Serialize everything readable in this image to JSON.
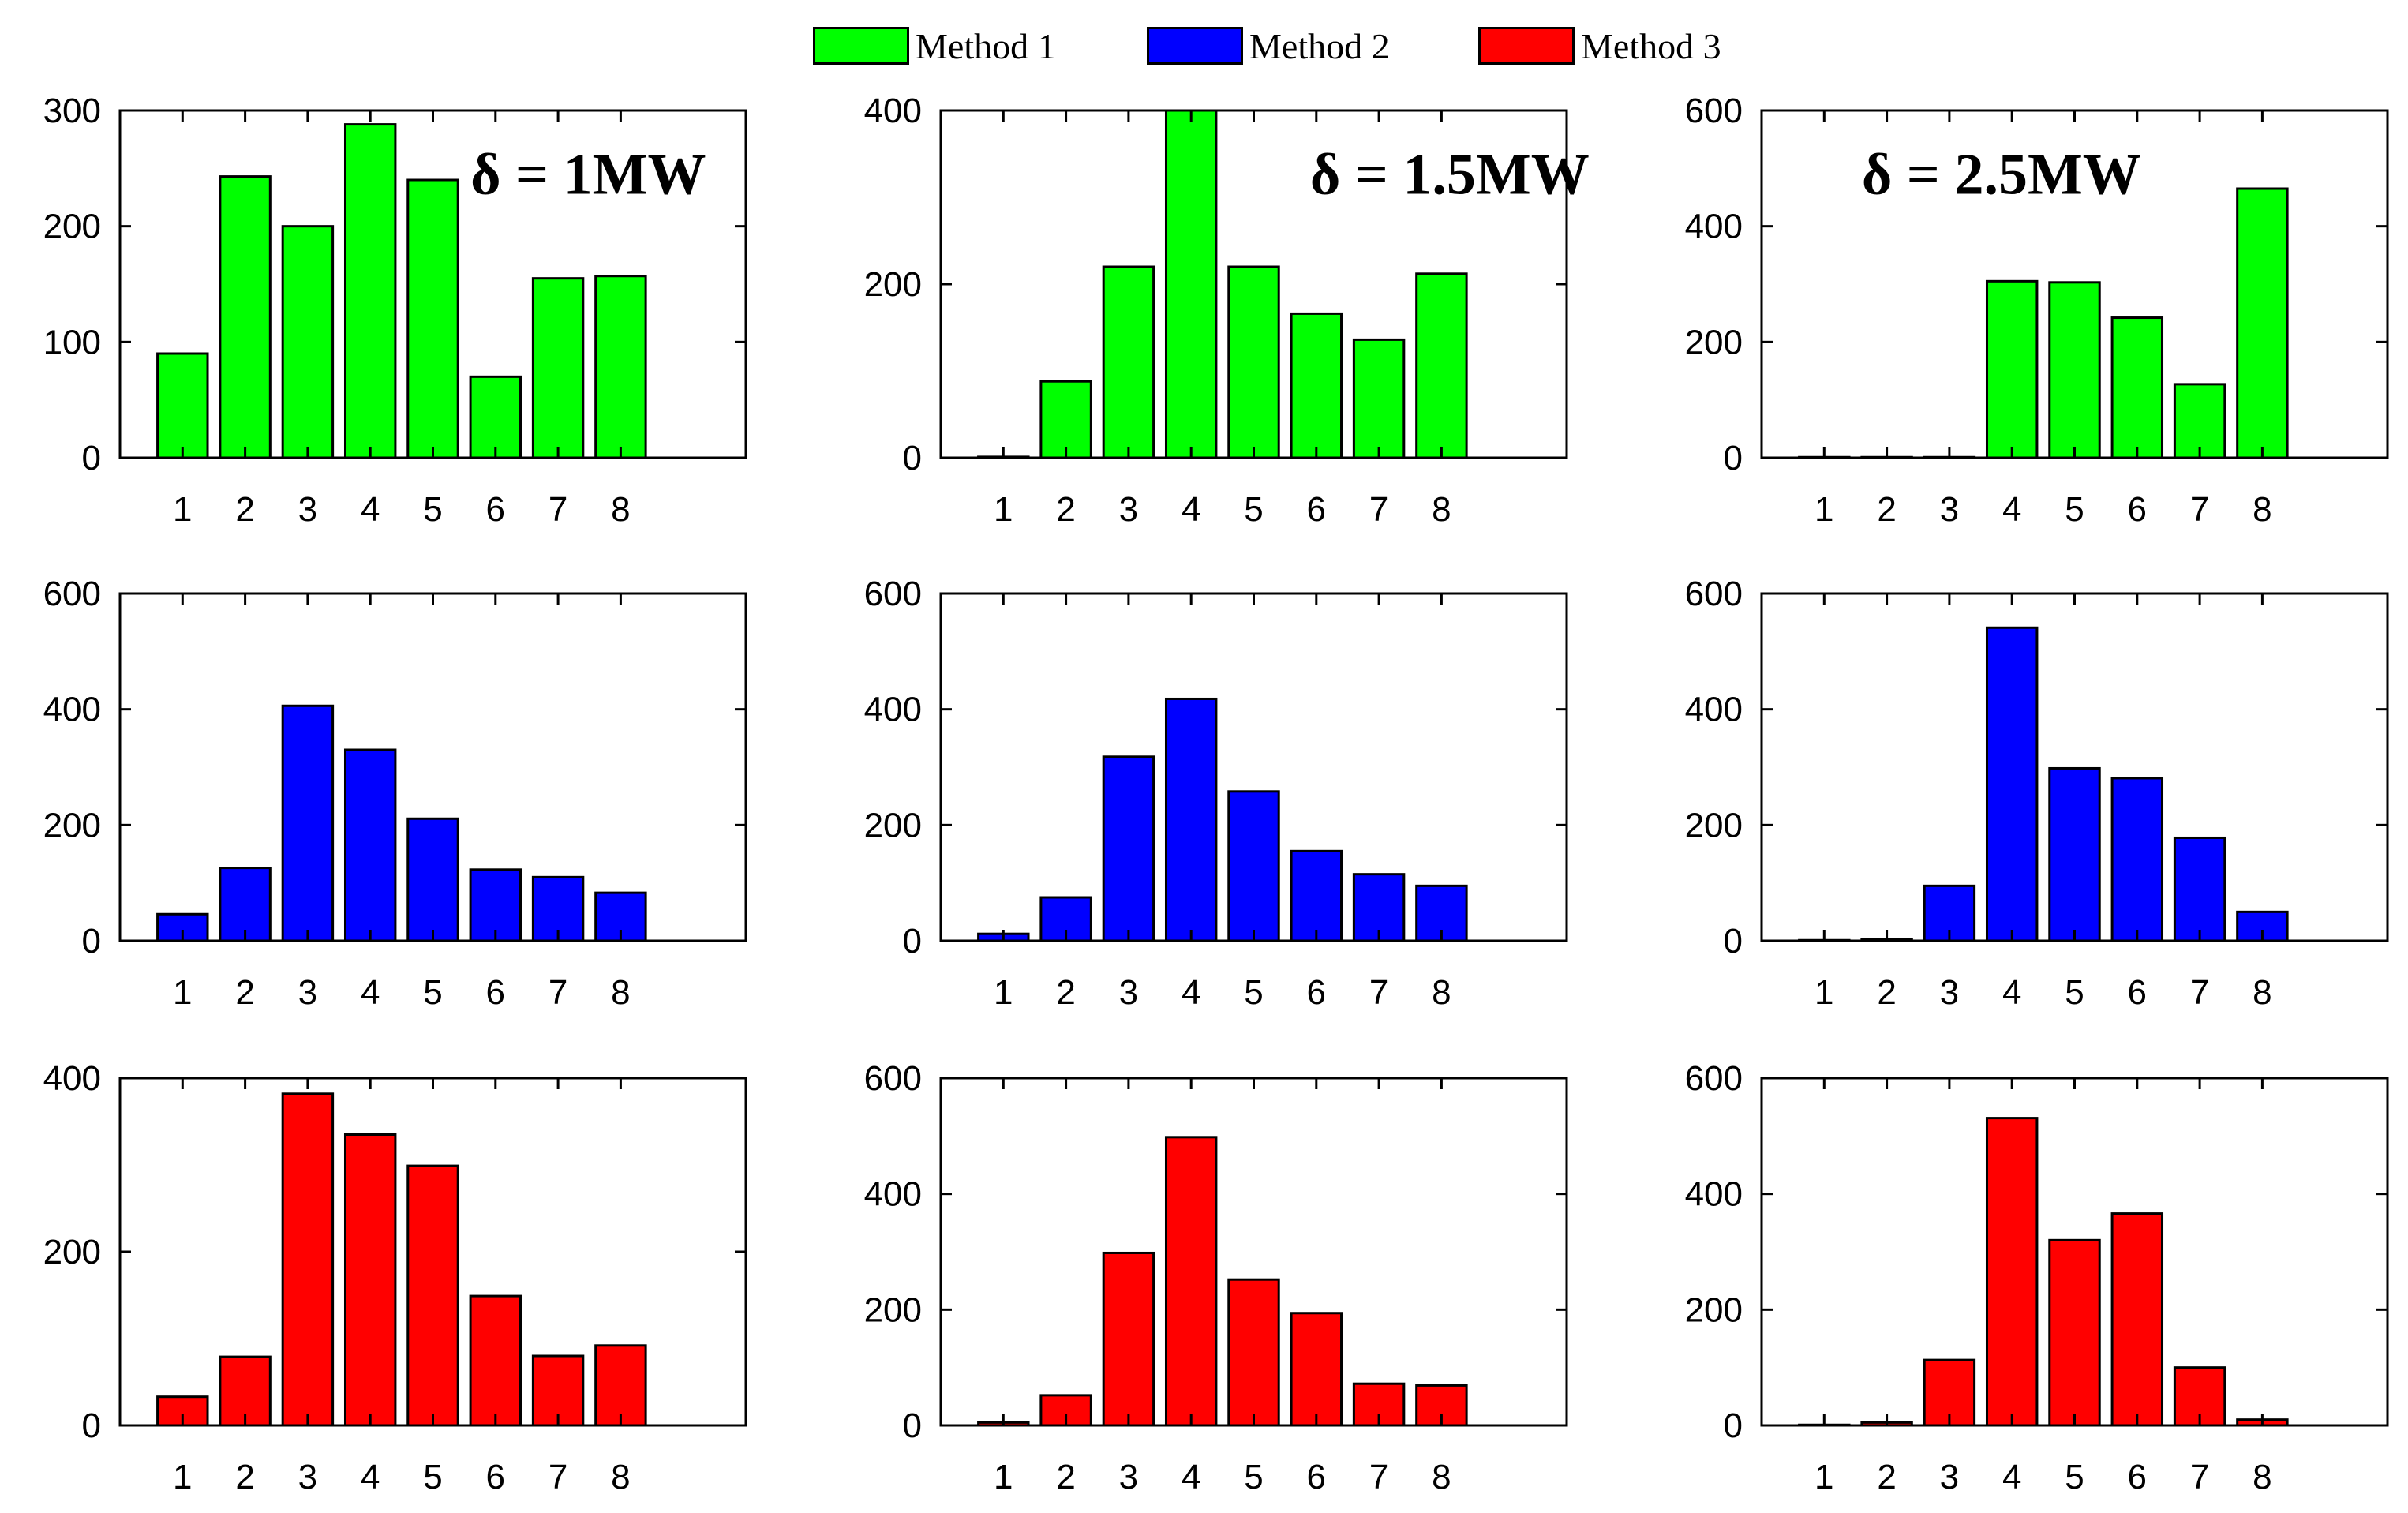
{
  "legend": [
    {
      "label": "Method 1",
      "color": "#00ff00"
    },
    {
      "label": "Method 2",
      "color": "#0000ff"
    },
    {
      "label": "Method 3",
      "color": "#ff0000"
    }
  ],
  "chart_data": [
    {
      "type": "bar",
      "categories": [
        "1",
        "2",
        "3",
        "4",
        "5",
        "6",
        "7",
        "8"
      ],
      "values": [
        90,
        243,
        200,
        288,
        240,
        70,
        155,
        157
      ],
      "series": "Method 1",
      "color": "#00ff00",
      "ylim": [
        0,
        300
      ],
      "yticks": [
        0,
        100,
        200,
        300
      ],
      "annotation": "δ = 1MW"
    },
    {
      "type": "bar",
      "categories": [
        "1",
        "2",
        "3",
        "4",
        "5",
        "6",
        "7",
        "8"
      ],
      "values": [
        1,
        88,
        220,
        400,
        220,
        166,
        136,
        212
      ],
      "series": "Method 1",
      "color": "#00ff00",
      "ylim": [
        0,
        400
      ],
      "yticks": [
        0,
        200,
        400
      ],
      "annotation": "δ = 1.5MW"
    },
    {
      "type": "bar",
      "categories": [
        "1",
        "2",
        "3",
        "4",
        "5",
        "6",
        "7",
        "8"
      ],
      "values": [
        1,
        1,
        1,
        305,
        303,
        242,
        127,
        465
      ],
      "series": "Method 1",
      "color": "#00ff00",
      "ylim": [
        0,
        600
      ],
      "yticks": [
        0,
        200,
        400,
        600
      ],
      "annotation": "δ = 2.5MW"
    },
    {
      "type": "bar",
      "categories": [
        "1",
        "2",
        "3",
        "4",
        "5",
        "6",
        "7",
        "8"
      ],
      "values": [
        46,
        126,
        406,
        330,
        211,
        123,
        110,
        83
      ],
      "series": "Method 2",
      "color": "#0000ff",
      "ylim": [
        0,
        600
      ],
      "yticks": [
        0,
        200,
        400,
        600
      ]
    },
    {
      "type": "bar",
      "categories": [
        "1",
        "2",
        "3",
        "4",
        "5",
        "6",
        "7",
        "8"
      ],
      "values": [
        12,
        75,
        318,
        418,
        258,
        155,
        115,
        95
      ],
      "series": "Method 2",
      "color": "#0000ff",
      "ylim": [
        0,
        600
      ],
      "yticks": [
        0,
        200,
        400,
        600
      ]
    },
    {
      "type": "bar",
      "categories": [
        "1",
        "2",
        "3",
        "4",
        "5",
        "6",
        "7",
        "8"
      ],
      "values": [
        1,
        3,
        95,
        541,
        298,
        281,
        178,
        50
      ],
      "series": "Method 2",
      "color": "#0000ff",
      "ylim": [
        0,
        600
      ],
      "yticks": [
        0,
        200,
        400,
        600
      ]
    },
    {
      "type": "bar",
      "categories": [
        "1",
        "2",
        "3",
        "4",
        "5",
        "6",
        "7",
        "8"
      ],
      "values": [
        33,
        79,
        382,
        335,
        299,
        149,
        80,
        92
      ],
      "series": "Method 3",
      "color": "#ff0000",
      "ylim": [
        0,
        400
      ],
      "yticks": [
        0,
        200,
        400
      ]
    },
    {
      "type": "bar",
      "categories": [
        "1",
        "2",
        "3",
        "4",
        "5",
        "6",
        "7",
        "8"
      ],
      "values": [
        5,
        52,
        298,
        498,
        252,
        194,
        72,
        69
      ],
      "series": "Method 3",
      "color": "#ff0000",
      "ylim": [
        0,
        600
      ],
      "yticks": [
        0,
        200,
        400,
        600
      ]
    },
    {
      "type": "bar",
      "categories": [
        "1",
        "2",
        "3",
        "4",
        "5",
        "6",
        "7",
        "8"
      ],
      "values": [
        1,
        5,
        113,
        531,
        320,
        366,
        100,
        10
      ],
      "series": "Method 3",
      "color": "#ff0000",
      "ylim": [
        0,
        600
      ],
      "yticks": [
        0,
        200,
        400,
        600
      ]
    }
  ]
}
